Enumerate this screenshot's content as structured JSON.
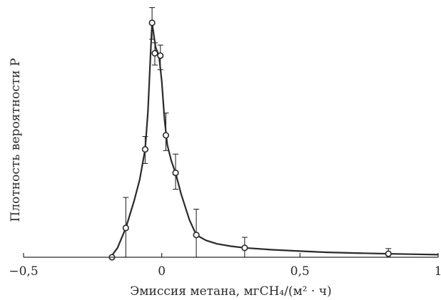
{
  "chart_data": {
    "type": "line",
    "xlabel": "Эмиссия метана, мгCH₄/(м² · ч)",
    "ylabel": "Плотность вероятности P",
    "xlim": [
      -0.5,
      1.0
    ],
    "ylim": [
      0,
      1.0
    ],
    "x_ticks": [
      -0.5,
      0,
      0.5,
      1
    ],
    "x_tick_labels": [
      "−0,5",
      "0",
      "0,5",
      "1"
    ],
    "grid": false,
    "legend": "none",
    "series": [
      {
        "points": [
          {
            "x": -0.18,
            "y": 0.0,
            "err_up": 0.0,
            "err_down": 0.0
          },
          {
            "x": -0.13,
            "y": 0.125,
            "err_up": 0.13,
            "err_down": 0.125
          },
          {
            "x": -0.06,
            "y": 0.46,
            "err_up": 0.055,
            "err_down": 0.06
          },
          {
            "x": -0.035,
            "y": 1.0,
            "err_up": 0.065,
            "err_down": 0.07
          },
          {
            "x": -0.025,
            "y": 0.87,
            "err_up": 0.045,
            "err_down": 0.05
          },
          {
            "x": -0.005,
            "y": 0.86,
            "err_up": 0.045,
            "err_down": 0.06
          },
          {
            "x": 0.015,
            "y": 0.52,
            "err_up": 0.095,
            "err_down": 0.065
          },
          {
            "x": 0.05,
            "y": 0.36,
            "err_up": 0.08,
            "err_down": 0.07
          },
          {
            "x": 0.125,
            "y": 0.095,
            "err_up": 0.11,
            "err_down": 0.095
          },
          {
            "x": 0.3,
            "y": 0.04,
            "err_up": 0.045,
            "err_down": 0.04
          },
          {
            "x": 0.82,
            "y": 0.015,
            "err_up": 0.022,
            "err_down": 0.015
          }
        ]
      }
    ],
    "curve": [
      [
        -0.185,
        0.0
      ],
      [
        -0.16,
        0.04
      ],
      [
        -0.13,
        0.125
      ],
      [
        -0.1,
        0.24
      ],
      [
        -0.08,
        0.33
      ],
      [
        -0.06,
        0.46
      ],
      [
        -0.05,
        0.62
      ],
      [
        -0.04,
        0.88
      ],
      [
        -0.035,
        1.0
      ],
      [
        -0.03,
        0.96
      ],
      [
        -0.022,
        0.895
      ],
      [
        -0.01,
        0.86
      ],
      [
        0.0,
        0.75
      ],
      [
        0.01,
        0.59
      ],
      [
        0.02,
        0.48
      ],
      [
        0.035,
        0.41
      ],
      [
        0.05,
        0.36
      ],
      [
        0.07,
        0.27
      ],
      [
        0.1,
        0.16
      ],
      [
        0.125,
        0.095
      ],
      [
        0.16,
        0.072
      ],
      [
        0.2,
        0.057
      ],
      [
        0.25,
        0.047
      ],
      [
        0.3,
        0.04
      ],
      [
        0.4,
        0.032
      ],
      [
        0.5,
        0.026
      ],
      [
        0.6,
        0.021
      ],
      [
        0.7,
        0.018
      ],
      [
        0.82,
        0.015
      ],
      [
        0.9,
        0.013
      ],
      [
        1.0,
        0.011
      ]
    ]
  }
}
